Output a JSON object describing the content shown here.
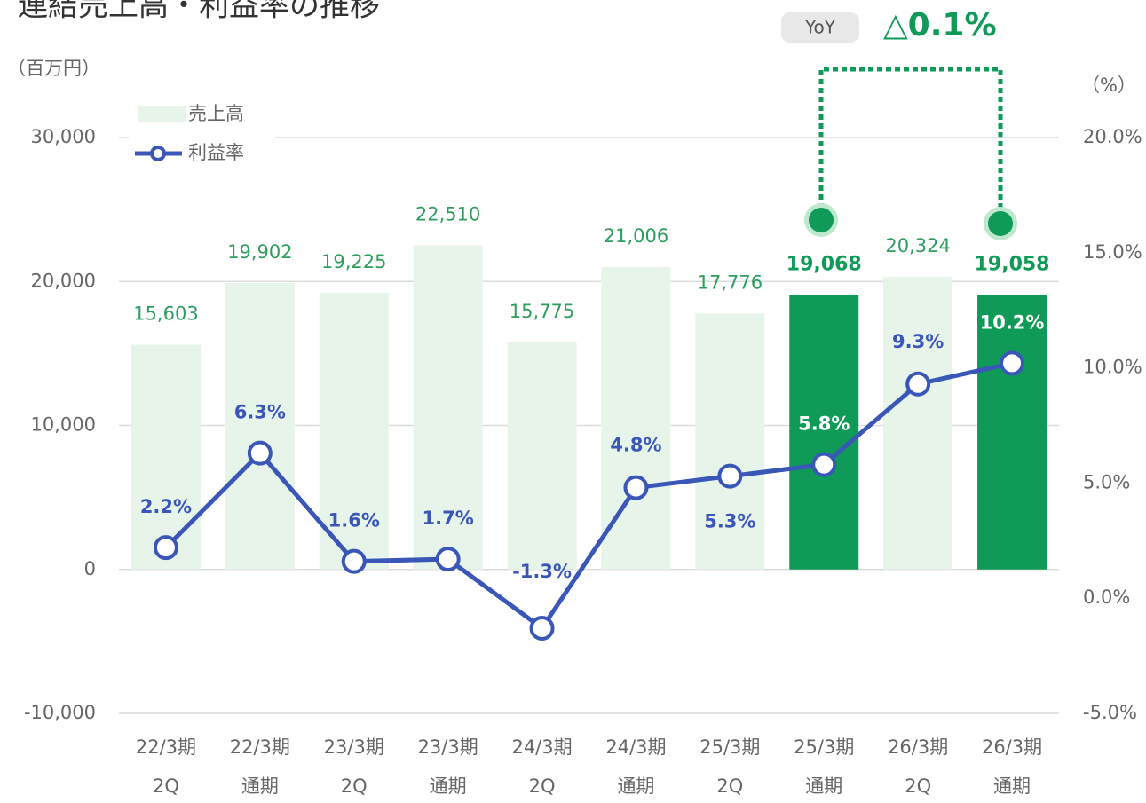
{
  "chart_data": {
    "type": "bar",
    "title": "連結売上高・利益率の推移",
    "y_label": "（百万円）",
    "y2_label": "（%）",
    "categories": [
      [
        "22/3期",
        "2Q"
      ],
      [
        "22/3期",
        "通期"
      ],
      [
        "23/3期",
        "2Q"
      ],
      [
        "23/3期",
        "通期"
      ],
      [
        "24/3期",
        "2Q"
      ],
      [
        "24/3期",
        "通期"
      ],
      [
        "25/3期",
        "2Q"
      ],
      [
        "25/3期",
        "通期"
      ],
      [
        "26/3期",
        "2Q"
      ],
      [
        "26/3期",
        "通期"
      ]
    ],
    "series": [
      {
        "name": "売上高",
        "type": "bar",
        "color": "#e6f4ea",
        "highlight_color": "#0f9a58",
        "highlight": [
          7,
          9
        ],
        "values": [
          15603,
          19902,
          19225,
          22510,
          15775,
          21006,
          17776,
          19068,
          20324,
          19058
        ],
        "value_labels": [
          "15,603",
          "19,902",
          "19,225",
          "22,510",
          "15,775",
          "21,006",
          "17,776",
          "19,068",
          "20,324",
          "19,058"
        ]
      },
      {
        "name": "利益率",
        "type": "line",
        "axis": "y2",
        "color": "#3a57b8",
        "values": [
          2.2,
          6.3,
          1.6,
          1.7,
          -1.3,
          4.8,
          5.3,
          5.8,
          9.3,
          10.2
        ],
        "value_labels": [
          "2.2%",
          "6.3%",
          "1.6%",
          "1.7%",
          "-1.3%",
          "4.8%",
          "5.3%",
          "5.8%",
          "9.3%",
          "10.2%"
        ]
      }
    ],
    "ylim": [
      -10000,
      30000
    ],
    "yticks": [
      {
        "value": -10000,
        "label": "-10,000"
      },
      0,
      {
        "value": 10000,
        "label": "10,000"
      },
      {
        "value": 20000,
        "label": "20,000"
      },
      {
        "value": 30000,
        "label": "30,000"
      }
    ],
    "y2lim": [
      -5,
      20
    ],
    "y2ticks": [
      {
        "value": -5,
        "label": "-5.0%"
      },
      {
        "value": 0,
        "label": "0.0%"
      },
      {
        "value": 5,
        "label": "5.0%"
      },
      {
        "value": 10,
        "label": "10.0%"
      },
      {
        "value": 15,
        "label": "15.0%"
      },
      {
        "value": 20,
        "label": "20.0%"
      }
    ],
    "grid": true,
    "legend": "top-left",
    "annotation": {
      "badge": "YoY",
      "text": "△0.1%"
    }
  }
}
